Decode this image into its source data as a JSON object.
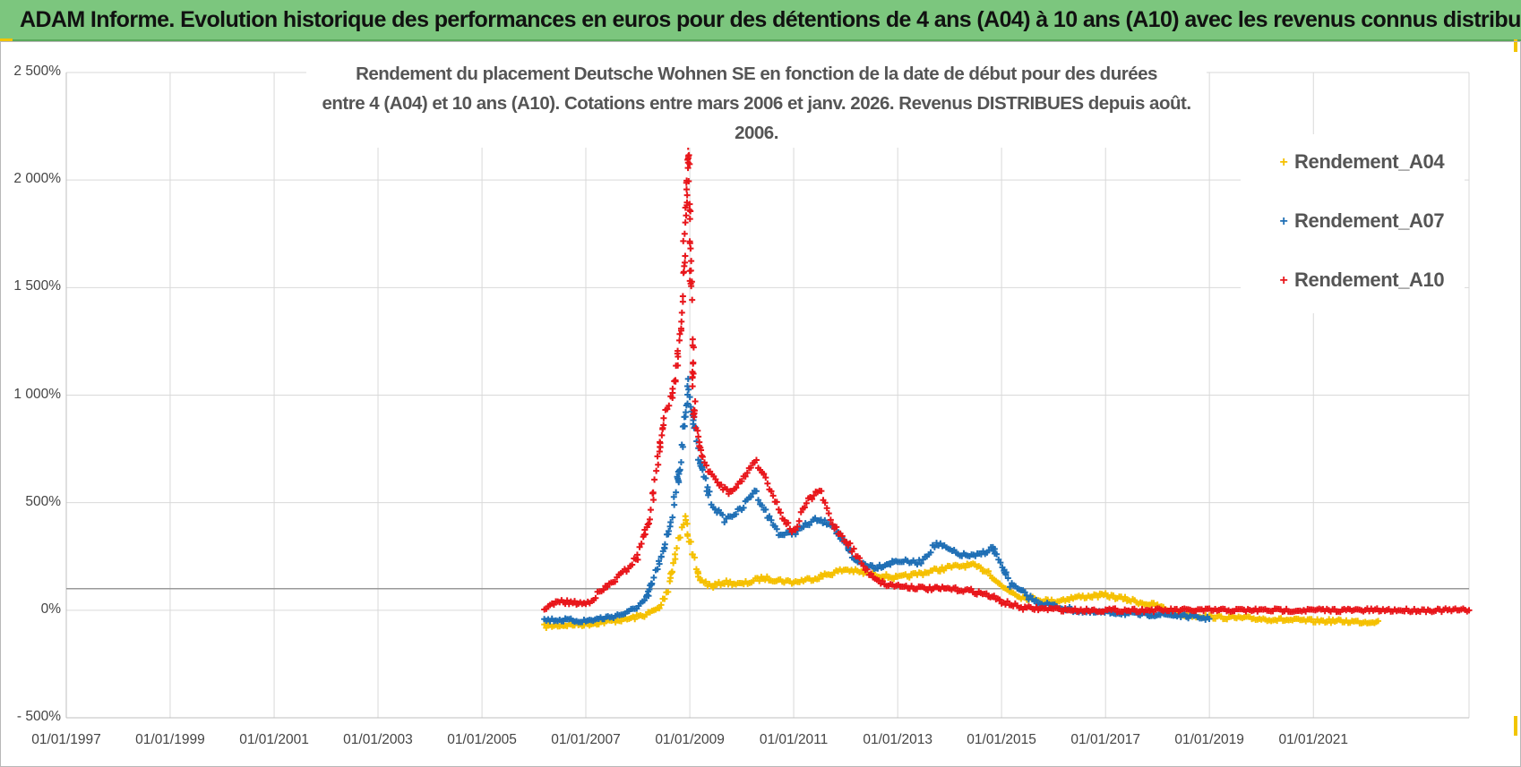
{
  "header": {
    "title": "ADAM Informe. Evolution historique des performances en euros pour des détentions de 4 ans (A04) à 10 ans (A10) avec les revenus connus distribués"
  },
  "colors": {
    "banner": "#7cc67e",
    "a04": "#f5c000",
    "a07": "#1f6fb5",
    "a10": "#e8161b",
    "reference_line": "#9a9a9a",
    "grid": "#d9d9d9"
  },
  "chart_data": {
    "type": "scatter",
    "title_lines": [
      "Rendement du placement Deutsche Wohnen SE en fonction de la date de début pour des durées",
      "entre 4 (A04) et 10 ans (A10).  Cotations entre mars 2006 et janv. 2026. Revenus DISTRIBUES depuis août. 2006."
    ],
    "xlabel": "",
    "ylabel": "",
    "x_range": [
      "1997-01-01",
      "2023-12-31"
    ],
    "y_range": [
      -500,
      2500
    ],
    "y_ticks": [
      2500,
      2000,
      1500,
      1000,
      500,
      0,
      -500
    ],
    "y_tick_labels": [
      "2 500%",
      "2 000%",
      "1 500%",
      "1 000%",
      "500%",
      "0%",
      "- 500%"
    ],
    "x_tick_labels": [
      "01/01/1997",
      "01/01/1999",
      "01/01/2001",
      "01/01/2003",
      "01/01/2005",
      "01/01/2007",
      "01/01/2009",
      "01/01/2011",
      "01/01/2013",
      "01/01/2015",
      "01/01/2017",
      "01/01/2019",
      "01/01/2021"
    ],
    "reference_line_y": 100,
    "grid": true,
    "legend_position": "top-right",
    "marker": "+",
    "series": [
      {
        "name": "Rendement_A04",
        "color": "#f5c000",
        "x": [
          "2006-03-15",
          "2006-07-01",
          "2007-01-01",
          "2007-07-01",
          "2007-11-01",
          "2008-03-01",
          "2008-06-01",
          "2008-08-01",
          "2008-10-01",
          "2008-12-01",
          "2009-03-01",
          "2009-06-01",
          "2009-09-01",
          "2010-01-01",
          "2010-06-01",
          "2011-01-01",
          "2011-06-01",
          "2012-01-01",
          "2012-06-01",
          "2013-01-01",
          "2013-06-01",
          "2014-01-01",
          "2014-06-01",
          "2014-10-01",
          "2015-01-01",
          "2015-06-01",
          "2016-01-01",
          "2016-06-01",
          "2017-01-01",
          "2017-06-01",
          "2018-01-01",
          "2018-06-01",
          "2019-01-01",
          "2019-06-01",
          "2020-01-01",
          "2020-06-01",
          "2021-01-01",
          "2021-06-01",
          "2022-01-01",
          "2022-04-01"
        ],
        "y": [
          -75,
          -70,
          -65,
          -50,
          -40,
          -20,
          10,
          100,
          300,
          420,
          150,
          110,
          130,
          120,
          150,
          130,
          150,
          190,
          170,
          150,
          170,
          200,
          210,
          180,
          110,
          60,
          40,
          60,
          70,
          50,
          20,
          -20,
          -30,
          -35,
          -40,
          -45,
          -50,
          -50,
          -55,
          -50
        ]
      },
      {
        "name": "Rendement_A07",
        "color": "#1f6fb5",
        "x": [
          "2006-03-15",
          "2006-07-01",
          "2007-01-01",
          "2007-07-01",
          "2007-11-01",
          "2008-03-01",
          "2008-06-01",
          "2008-09-01",
          "2008-11-01",
          "2008-12-20",
          "2009-03-01",
          "2009-06-01",
          "2009-09-01",
          "2010-01-01",
          "2010-04-01",
          "2010-07-01",
          "2010-10-01",
          "2011-01-01",
          "2011-06-01",
          "2011-10-01",
          "2012-03-01",
          "2012-08-01",
          "2013-01-01",
          "2013-06-01",
          "2013-10-01",
          "2014-03-01",
          "2014-07-01",
          "2014-11-01",
          "2015-03-01",
          "2015-09-01",
          "2016-03-01",
          "2016-09-01",
          "2017-03-01",
          "2017-09-01",
          "2018-03-01",
          "2018-09-01",
          "2018-12-31"
        ],
        "y": [
          -45,
          -45,
          -50,
          -30,
          -10,
          50,
          220,
          450,
          700,
          1050,
          720,
          500,
          420,
          470,
          560,
          440,
          350,
          360,
          420,
          400,
          230,
          200,
          230,
          220,
          310,
          260,
          250,
          290,
          120,
          40,
          10,
          -10,
          -10,
          -20,
          -20,
          -30,
          -40
        ]
      },
      {
        "name": "Rendement_A10",
        "color": "#e8161b",
        "x": [
          "2006-03-15",
          "2006-07-01",
          "2007-01-01",
          "2007-06-01",
          "2007-10-01",
          "2008-01-01",
          "2008-04-01",
          "2008-07-01",
          "2008-09-01",
          "2008-11-01",
          "2008-12-20",
          "2009-02-01",
          "2009-04-01",
          "2009-07-01",
          "2009-10-01",
          "2010-01-01",
          "2010-04-01",
          "2010-07-01",
          "2010-10-01",
          "2011-01-01",
          "2011-04-01",
          "2011-07-01",
          "2011-10-01",
          "2012-02-01",
          "2012-06-01",
          "2012-10-01",
          "2013-03-01",
          "2013-08-01",
          "2014-01-01",
          "2014-06-01",
          "2014-10-01",
          "2015-01-01",
          "2015-06-01",
          "2016-01-01",
          "2016-06-01",
          "2017-01-01",
          "2018-01-01",
          "2019-01-01",
          "2020-01-01",
          "2021-01-01",
          "2022-01-01",
          "2023-12-31"
        ],
        "y": [
          10,
          40,
          30,
          110,
          180,
          250,
          450,
          900,
          1000,
          1300,
          2150,
          900,
          700,
          600,
          550,
          600,
          700,
          600,
          450,
          360,
          500,
          560,
          400,
          300,
          180,
          120,
          110,
          100,
          100,
          90,
          70,
          40,
          10,
          5,
          0,
          0,
          0,
          0,
          0,
          0,
          0,
          0
        ]
      }
    ]
  }
}
